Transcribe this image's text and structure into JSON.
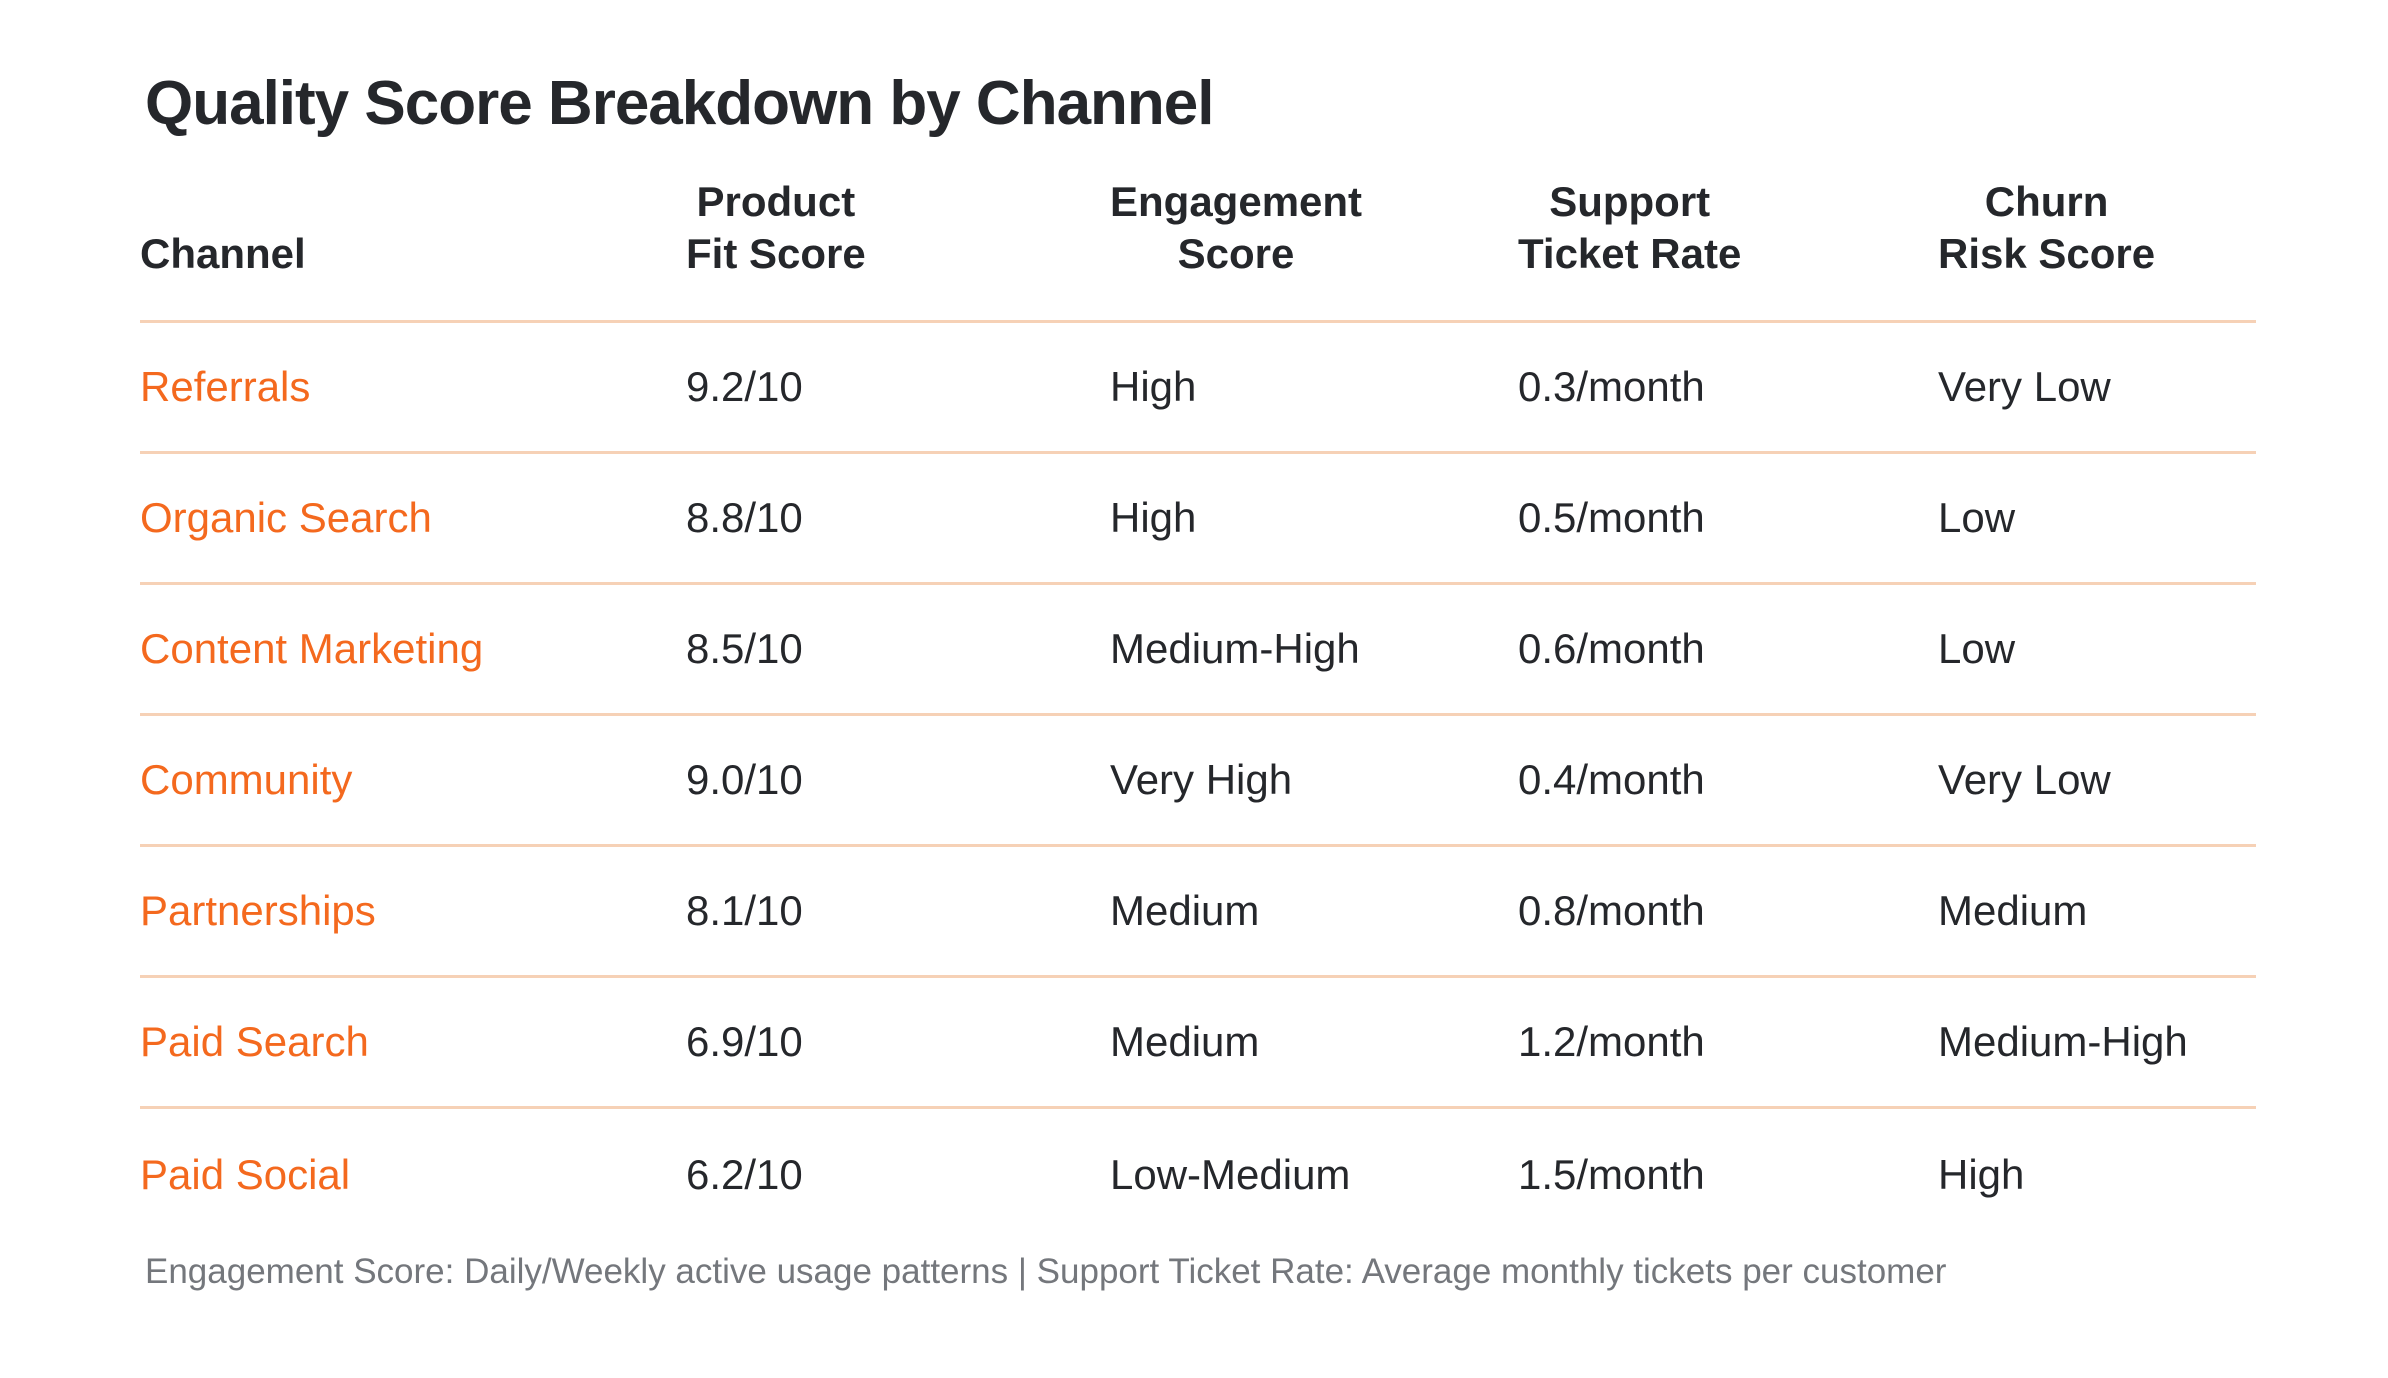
{
  "chart_data": {
    "type": "table",
    "title": "Quality Score Breakdown by Channel",
    "columns": [
      "Channel",
      "Product Fit Score",
      "Engagement Score",
      "Support Ticket Rate",
      "Churn Risk Score"
    ],
    "rows": [
      [
        "Referrals",
        "9.2/10",
        "High",
        "0.3/month",
        "Very Low"
      ],
      [
        "Organic Search",
        "8.8/10",
        "High",
        "0.5/month",
        "Low"
      ],
      [
        "Content Marketing",
        "8.5/10",
        "Medium-High",
        "0.6/month",
        "Low"
      ],
      [
        "Community",
        "9.0/10",
        "Very High",
        "0.4/month",
        "Very Low"
      ],
      [
        "Partnerships",
        "8.1/10",
        "Medium",
        "0.8/month",
        "Medium"
      ],
      [
        "Paid Search",
        "6.9/10",
        "Medium",
        "1.2/month",
        "Medium-High"
      ],
      [
        "Paid Social",
        "6.2/10",
        "Low-Medium",
        "1.5/month",
        "High"
      ]
    ],
    "footnote": "Engagement Score: Daily/Weekly active usage patterns | Support Ticket Rate: Average monthly tickets per customer",
    "layout_hints": {
      "header_alignment": "center",
      "body_alignment": "left",
      "grid": "horizontal-dividers-only"
    }
  },
  "header_lines": [
    {
      "line1": "",
      "line2": "Channel"
    },
    {
      "line1": "Product",
      "line2": "Fit Score"
    },
    {
      "line1": "Engagement",
      "line2": "Score"
    },
    {
      "line1": "Support",
      "line2": "Ticket Rate"
    },
    {
      "line1": "Churn",
      "line2": "Risk Score"
    }
  ],
  "colors": {
    "accent": "#F4691E",
    "text": "#25272B",
    "muted": "#74777C",
    "divider": "#F6D1B6",
    "bg": "#FFFFFF"
  }
}
